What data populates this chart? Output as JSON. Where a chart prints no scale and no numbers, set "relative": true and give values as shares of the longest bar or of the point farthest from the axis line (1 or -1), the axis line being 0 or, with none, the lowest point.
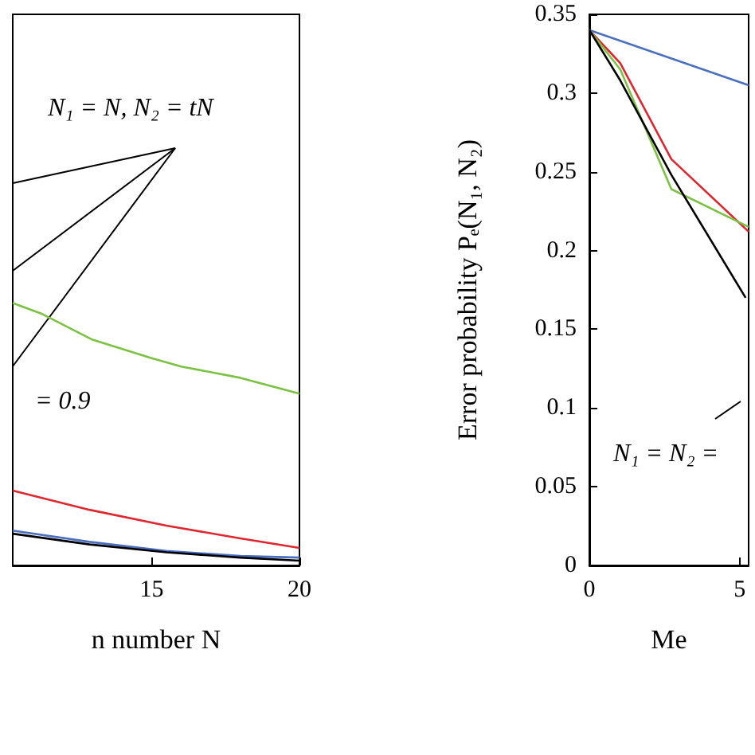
{
  "chart_data": [
    {
      "type": "line",
      "relative": true,
      "xlabel": "n number N",
      "xlim": [
        10.3,
        20
      ],
      "xticks": [
        15,
        20
      ],
      "annotations": [
        "N₁ = N, N₂ = tN",
        "= 0.9"
      ],
      "series": [
        {
          "color": "#7cc242",
          "x": [
            10.3,
            11.3,
            13,
            15,
            16,
            18,
            20
          ],
          "values": [
            1,
            0.958,
            0.86,
            0.79,
            0.758,
            0.715,
            0.655
          ]
        },
        {
          "color": "#e0262e",
          "x": [
            10.3,
            12.9,
            15.5,
            18,
            20
          ],
          "values": [
            0.285,
            0.212,
            0.152,
            0.103,
            0.067
          ]
        },
        {
          "color": "#4a6fc0",
          "x": [
            10.3,
            12.9,
            15.5,
            18,
            20
          ],
          "values": [
            0.133,
            0.09,
            0.055,
            0.036,
            0.03
          ]
        },
        {
          "color": "#000000",
          "x": [
            10.3,
            12.9,
            15.5,
            18,
            20
          ],
          "values": [
            0.121,
            0.08,
            0.05,
            0.03,
            0.018
          ]
        }
      ]
    },
    {
      "type": "line",
      "xlabel": "Me",
      "ylabel": "Error probability Pₑ(N₁, N₂)",
      "xlim": [
        0,
        5.3
      ],
      "xticks": [
        0,
        5
      ],
      "ylim": [
        0,
        0.35
      ],
      "yticks": [
        0,
        0.05,
        0.1,
        0.15,
        0.2,
        0.25,
        0.3,
        0.35
      ],
      "annotations": [
        "N₁ = N₂ ="
      ],
      "series": [
        {
          "color": "#4a6fc0",
          "x": [
            0,
            5.3
          ],
          "values": [
            0.34,
            0.305
          ]
        },
        {
          "color": "#e0262e",
          "x": [
            0,
            1.03,
            2.73,
            5.3
          ],
          "values": [
            0.34,
            0.319,
            0.258,
            0.212
          ]
        },
        {
          "color": "#7cc242",
          "x": [
            0,
            1.03,
            2.73,
            5.3
          ],
          "values": [
            0.34,
            0.315,
            0.239,
            0.215
          ]
        },
        {
          "color": "#000000",
          "x": [
            0,
            1.03,
            2.73,
            5.2
          ],
          "values": [
            0.34,
            0.308,
            0.248,
            0.17
          ]
        }
      ]
    }
  ]
}
